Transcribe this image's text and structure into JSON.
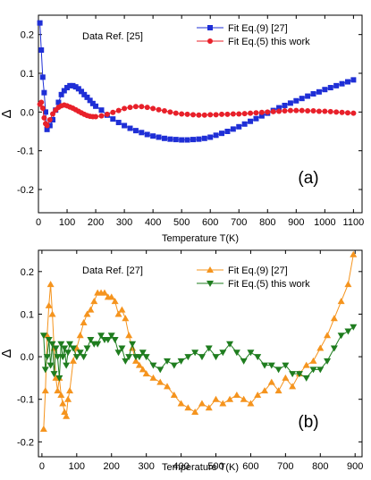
{
  "chart_data": [
    {
      "type": "line",
      "panel_label": "(a)",
      "annotation": "Data Ref. [25]",
      "xlabel": "Temperature T(K)",
      "ylabel": "Δ",
      "xlim": [
        0,
        1130
      ],
      "ylim": [
        -0.26,
        0.25
      ],
      "xticks": [
        "0",
        "100",
        "200",
        "300",
        "400",
        "500",
        "600",
        "700",
        "800",
        "900",
        "1000",
        "1100"
      ],
      "xtick_values": [
        0,
        100,
        200,
        300,
        400,
        500,
        600,
        700,
        800,
        900,
        1000,
        1100
      ],
      "yticks": [
        "-0.2",
        "-0.1",
        "0.0",
        "0.1",
        "0.2"
      ],
      "ytick_values": [
        -0.2,
        -0.1,
        0,
        0.1,
        0.2
      ],
      "legend_position": "top-right",
      "series": [
        {
          "name": "Fit Eq.(9) [27]",
          "color": "#1f2fd6",
          "marker": "square",
          "x": [
            5,
            10,
            15,
            20,
            25,
            30,
            40,
            50,
            60,
            70,
            80,
            90,
            100,
            110,
            120,
            130,
            140,
            150,
            160,
            170,
            180,
            190,
            200,
            220,
            240,
            260,
            280,
            300,
            320,
            340,
            360,
            380,
            400,
            420,
            440,
            460,
            480,
            500,
            520,
            540,
            560,
            580,
            600,
            620,
            640,
            660,
            680,
            700,
            720,
            740,
            760,
            780,
            800,
            820,
            840,
            860,
            880,
            900,
            920,
            940,
            960,
            980,
            1000,
            1020,
            1040,
            1060,
            1080,
            1100
          ],
          "y": [
            0.23,
            0.16,
            0.09,
            0.05,
            0.0,
            -0.045,
            -0.035,
            -0.02,
            0.005,
            0.025,
            0.045,
            0.055,
            0.063,
            0.068,
            0.068,
            0.065,
            0.06,
            0.053,
            0.045,
            0.038,
            0.03,
            0.022,
            0.015,
            0.005,
            -0.008,
            -0.018,
            -0.027,
            -0.035,
            -0.042,
            -0.048,
            -0.053,
            -0.058,
            -0.062,
            -0.065,
            -0.068,
            -0.07,
            -0.071,
            -0.072,
            -0.072,
            -0.071,
            -0.07,
            -0.068,
            -0.065,
            -0.06,
            -0.055,
            -0.05,
            -0.044,
            -0.038,
            -0.031,
            -0.024,
            -0.017,
            -0.01,
            -0.003,
            0.004,
            0.011,
            0.017,
            0.023,
            0.029,
            0.035,
            0.041,
            0.047,
            0.052,
            0.058,
            0.063,
            0.068,
            0.073,
            0.078,
            0.083
          ]
        },
        {
          "name": "Fit Eq.(5) this work",
          "color": "#e8202a",
          "marker": "circle",
          "x": [
            5,
            10,
            15,
            20,
            25,
            30,
            40,
            50,
            60,
            70,
            80,
            90,
            100,
            110,
            120,
            130,
            140,
            150,
            160,
            170,
            180,
            190,
            200,
            220,
            240,
            260,
            280,
            300,
            320,
            340,
            360,
            380,
            400,
            420,
            440,
            460,
            480,
            500,
            520,
            540,
            560,
            580,
            600,
            620,
            640,
            660,
            680,
            700,
            720,
            740,
            760,
            780,
            800,
            820,
            840,
            860,
            880,
            900,
            920,
            940,
            960,
            980,
            1000,
            1020,
            1040,
            1060,
            1080,
            1100
          ],
          "y": [
            0.02,
            0.025,
            0.01,
            -0.015,
            -0.03,
            -0.035,
            -0.02,
            -0.005,
            0.005,
            0.012,
            0.016,
            0.018,
            0.016,
            0.013,
            0.01,
            0.006,
            0.002,
            -0.002,
            -0.006,
            -0.009,
            -0.011,
            -0.012,
            -0.012,
            -0.01,
            -0.006,
            -0.001,
            0.004,
            0.009,
            0.012,
            0.014,
            0.014,
            0.012,
            0.009,
            0.006,
            0.003,
            0.0,
            -0.003,
            -0.005,
            -0.006,
            -0.007,
            -0.008,
            -0.008,
            -0.007,
            -0.007,
            -0.006,
            -0.006,
            -0.005,
            -0.005,
            -0.004,
            -0.003,
            -0.002,
            -0.001,
            0.0,
            0.001,
            0.002,
            0.003,
            0.004,
            0.004,
            0.004,
            0.003,
            0.003,
            0.002,
            0.002,
            0.001,
            0.0,
            -0.001,
            -0.002,
            -0.003
          ]
        }
      ]
    },
    {
      "type": "line",
      "panel_label": "(b)",
      "annotation": "Data Ref. [27]",
      "xlabel": "Temperature T(K)",
      "ylabel": "Δ",
      "xlim": [
        -10,
        920
      ],
      "ylim": [
        -0.235,
        0.25
      ],
      "xticks": [
        "0",
        "100",
        "200",
        "300",
        "400",
        "500",
        "600",
        "700",
        "800",
        "900"
      ],
      "xtick_values": [
        0,
        100,
        200,
        300,
        400,
        500,
        600,
        700,
        800,
        900
      ],
      "yticks": [
        "-0.2",
        "-0.1",
        "0.0",
        "0.1",
        "0.2"
      ],
      "ytick_values": [
        -0.2,
        -0.1,
        0,
        0.1,
        0.2
      ],
      "legend_position": "top-right",
      "series": [
        {
          "name": "Fit Eq.(9) [27]",
          "color": "#f5941e",
          "marker": "triangle-up",
          "x": [
            5,
            10,
            15,
            20,
            25,
            30,
            35,
            40,
            45,
            50,
            55,
            60,
            65,
            70,
            75,
            80,
            90,
            100,
            110,
            120,
            130,
            140,
            150,
            160,
            170,
            180,
            190,
            200,
            210,
            220,
            230,
            240,
            250,
            260,
            270,
            280,
            290,
            300,
            320,
            340,
            360,
            380,
            400,
            420,
            440,
            460,
            480,
            500,
            520,
            540,
            560,
            580,
            600,
            620,
            640,
            660,
            680,
            700,
            720,
            740,
            760,
            780,
            800,
            820,
            840,
            860,
            880,
            895
          ],
          "y": [
            -0.17,
            -0.08,
            0.05,
            0.12,
            0.17,
            0.1,
            0.02,
            -0.05,
            -0.08,
            -0.05,
            -0.09,
            -0.11,
            -0.13,
            -0.14,
            -0.1,
            -0.08,
            -0.01,
            0.02,
            0.05,
            0.08,
            0.1,
            0.11,
            0.13,
            0.15,
            0.15,
            0.15,
            0.14,
            0.14,
            0.13,
            0.1,
            0.11,
            0.09,
            0.05,
            0.02,
            -0.01,
            -0.02,
            -0.03,
            -0.04,
            -0.05,
            -0.06,
            -0.07,
            -0.09,
            -0.11,
            -0.12,
            -0.13,
            -0.11,
            -0.12,
            -0.1,
            -0.11,
            -0.1,
            -0.09,
            -0.1,
            -0.11,
            -0.09,
            -0.08,
            -0.06,
            -0.08,
            -0.05,
            -0.07,
            -0.04,
            -0.02,
            -0.01,
            0.02,
            0.05,
            0.09,
            0.13,
            0.17,
            0.24
          ]
        },
        {
          "name": "Fit Eq.(5) this work",
          "color": "#1f7d1f",
          "marker": "triangle-down",
          "x": [
            5,
            10,
            15,
            20,
            25,
            30,
            35,
            40,
            45,
            50,
            55,
            60,
            65,
            70,
            75,
            80,
            90,
            100,
            110,
            120,
            130,
            140,
            150,
            160,
            170,
            180,
            190,
            200,
            210,
            220,
            230,
            240,
            250,
            260,
            270,
            280,
            290,
            300,
            320,
            340,
            360,
            380,
            400,
            420,
            440,
            460,
            480,
            500,
            520,
            540,
            560,
            580,
            600,
            620,
            640,
            660,
            680,
            700,
            720,
            740,
            760,
            780,
            800,
            820,
            840,
            860,
            880,
            895
          ],
          "y": [
            0.05,
            -0.03,
            0.0,
            0.04,
            -0.02,
            0.03,
            -0.04,
            0.02,
            0.0,
            -0.05,
            0.03,
            0.0,
            0.02,
            -0.02,
            0.01,
            0.03,
            0.02,
            0.0,
            0.01,
            0.0,
            0.02,
            0.04,
            0.03,
            0.03,
            0.05,
            0.04,
            0.04,
            0.05,
            0.04,
            0.01,
            0.02,
            -0.01,
            0.0,
            0.03,
            0.0,
            0.0,
            0.01,
            0.0,
            -0.02,
            -0.03,
            -0.01,
            -0.02,
            -0.01,
            0.0,
            0.01,
            0.0,
            0.02,
            0.0,
            0.01,
            0.03,
            0.01,
            -0.01,
            0.01,
            0.0,
            -0.02,
            -0.02,
            -0.03,
            -0.02,
            -0.04,
            -0.04,
            -0.05,
            -0.03,
            -0.03,
            -0.01,
            0.02,
            0.05,
            0.06,
            0.07
          ]
        }
      ]
    }
  ]
}
